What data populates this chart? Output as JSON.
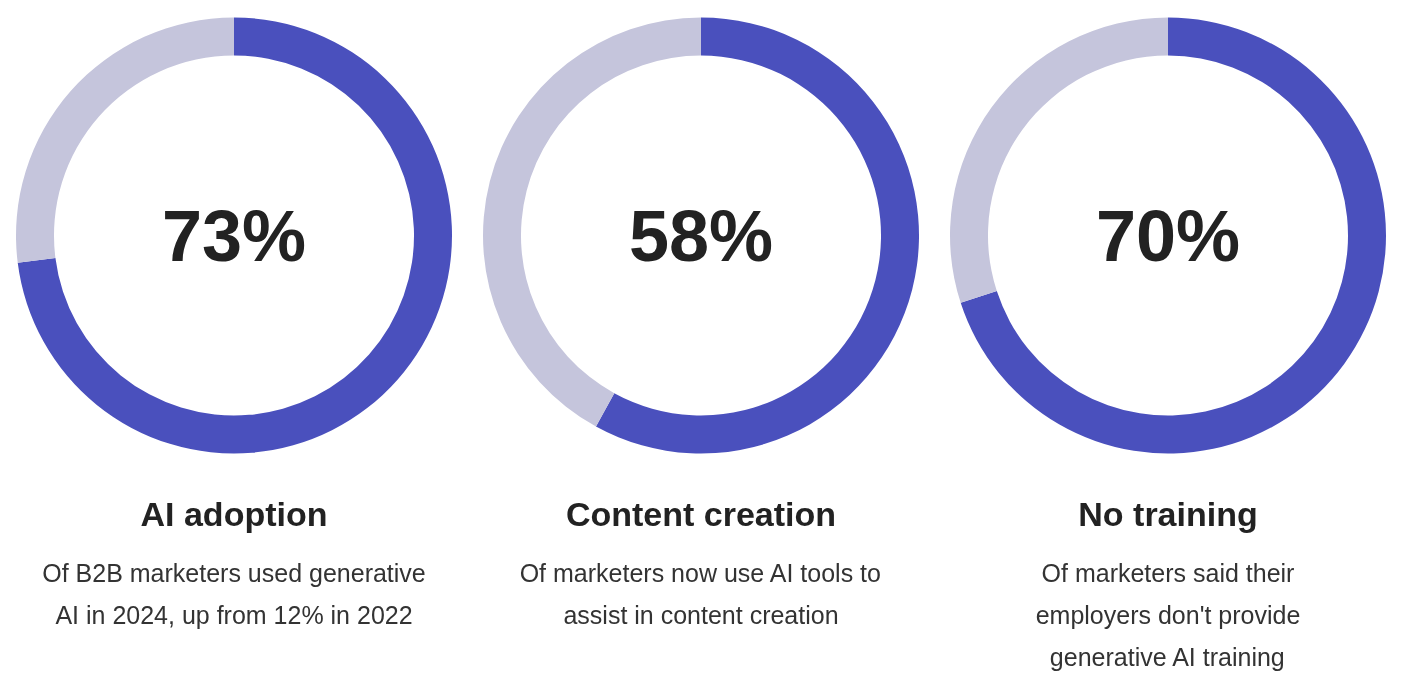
{
  "chart_data": [
    {
      "type": "donut",
      "categories": [
        null,
        null
      ],
      "values": [
        73,
        27
      ],
      "colors": [
        "#4a50bd",
        "#c5c5dc"
      ],
      "annotations": [
        "73%"
      ],
      "title": "AI adoption",
      "subtitle": "Of B2B marketers used generative AI in 2024, up from 12% in 2022"
    },
    {
      "type": "donut",
      "categories": [
        null,
        null
      ],
      "values": [
        58,
        42
      ],
      "colors": [
        "#4a50bd",
        "#c5c5dc"
      ],
      "annotations": [
        "58%"
      ],
      "title": "Content creation",
      "subtitle": "Of marketers now use AI tools to assist in content creation"
    },
    {
      "type": "donut",
      "categories": [
        null,
        null
      ],
      "values": [
        70,
        30
      ],
      "colors": [
        "#4a50bd",
        "#c5c5dc"
      ],
      "annotations": [
        "70%"
      ],
      "title": "No training",
      "subtitle": "Of marketers said their employers don't provide generative AI training"
    }
  ]
}
